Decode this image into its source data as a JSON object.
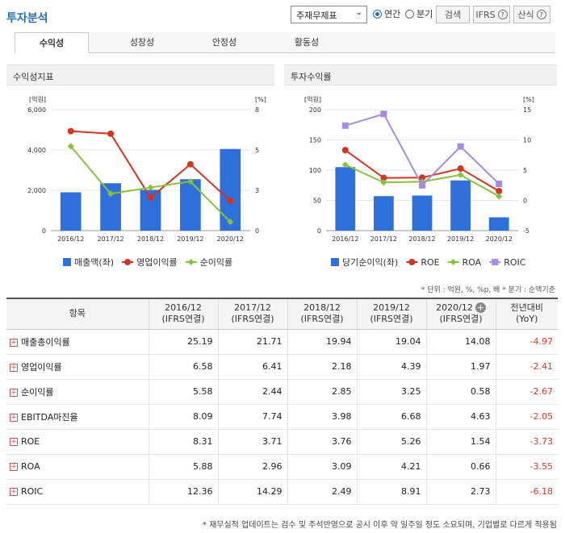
{
  "header": {
    "title": "투자분석",
    "select_value": "주재무제표",
    "radio_annual": "연간",
    "radio_quarter": "분기",
    "search_button": "검색",
    "ifrs_label": "IFRS",
    "formula_label": "산식"
  },
  "tabs": [
    {
      "label": "수익성",
      "active": true
    },
    {
      "label": "성장성",
      "active": false
    },
    {
      "label": "안정성",
      "active": false
    },
    {
      "label": "활동성",
      "active": false
    }
  ],
  "panels": {
    "left_title": "수익성지표",
    "right_title": "투자수익률"
  },
  "chart_data": [
    {
      "type": "bar",
      "title": "",
      "left_unit": "[억원]",
      "right_unit": "[%]",
      "categories": [
        "2016/12",
        "2017/12",
        "2018/12",
        "2019/12",
        "2020/12"
      ],
      "left_ticks": [
        "6,000",
        "4,000",
        "2,000",
        "0"
      ],
      "right_ticks": [
        "8",
        "5",
        "3",
        "0"
      ],
      "ylim": [
        0,
        6000
      ],
      "y2lim": [
        0,
        8
      ],
      "series": [
        {
          "name": "매출액(좌)",
          "kind": "bar",
          "axis": "left",
          "color": "#2e6fd9",
          "values": [
            1900,
            2350,
            2020,
            2550,
            4050
          ]
        },
        {
          "name": "영업이익률",
          "kind": "line",
          "axis": "right",
          "color": "#d4341f",
          "values": [
            6.58,
            6.41,
            2.18,
            4.39,
            1.97
          ]
        },
        {
          "name": "순이익률",
          "kind": "line",
          "axis": "right",
          "color": "#88c23a",
          "values": [
            5.58,
            2.44,
            2.85,
            3.25,
            0.58
          ]
        }
      ]
    },
    {
      "type": "bar",
      "title": "",
      "left_unit": "[억원]",
      "right_unit": "[%]",
      "categories": [
        "2016/12",
        "2017/12",
        "2018/12",
        "2019/12",
        "2020/12"
      ],
      "left_ticks": [
        "200",
        "150",
        "100",
        "50",
        "0"
      ],
      "right_ticks": [
        "15",
        "10",
        "5",
        "0",
        "-5"
      ],
      "ylim": [
        0,
        200
      ],
      "y2lim": [
        -5,
        15
      ],
      "series": [
        {
          "name": "당기순이익(좌)",
          "kind": "bar",
          "axis": "left",
          "color": "#2e6fd9",
          "values": [
            105,
            57,
            58,
            83,
            22
          ]
        },
        {
          "name": "ROE",
          "kind": "line",
          "axis": "right",
          "color": "#d4341f",
          "values": [
            8.31,
            3.71,
            3.76,
            5.26,
            1.54
          ]
        },
        {
          "name": "ROA",
          "kind": "line",
          "axis": "right",
          "color": "#88c23a",
          "values": [
            5.88,
            2.96,
            3.09,
            4.21,
            0.66
          ]
        },
        {
          "name": "ROIC",
          "kind": "line",
          "axis": "right",
          "color": "#a68be0",
          "values": [
            12.36,
            14.29,
            2.49,
            8.91,
            2.73
          ]
        }
      ]
    }
  ],
  "unit_note": "* 단위 : 억원, %, %p, 배   * 분기 : 순액기준",
  "table": {
    "header_item": "항목",
    "columns": [
      {
        "period": "2016/12",
        "basis": "(IFRS연결)"
      },
      {
        "period": "2017/12",
        "basis": "(IFRS연결)"
      },
      {
        "period": "2018/12",
        "basis": "(IFRS연결)"
      },
      {
        "period": "2019/12",
        "basis": "(IFRS연결)"
      },
      {
        "period": "2020/12",
        "basis": "(IFRS연결)"
      }
    ],
    "yoy_header": "전년대비",
    "yoy_sub": "(YoY)",
    "rows": [
      {
        "label": "매출총이익률",
        "values": [
          "25.19",
          "21.71",
          "19.94",
          "19.04",
          "14.08"
        ],
        "yoy": "-4.97"
      },
      {
        "label": "영업이익률",
        "values": [
          "6.58",
          "6.41",
          "2.18",
          "4.39",
          "1.97"
        ],
        "yoy": "-2.41"
      },
      {
        "label": "순이익률",
        "values": [
          "5.58",
          "2.44",
          "2.85",
          "3.25",
          "0.58"
        ],
        "yoy": "-2.67"
      },
      {
        "label": "EBITDA마진율",
        "values": [
          "8.09",
          "7.74",
          "3.98",
          "6.68",
          "4.63"
        ],
        "yoy": "-2.05"
      },
      {
        "label": "ROE",
        "values": [
          "8.31",
          "3.71",
          "3.76",
          "5.26",
          "1.54"
        ],
        "yoy": "-3.73"
      },
      {
        "label": "ROA",
        "values": [
          "5.88",
          "2.96",
          "3.09",
          "4.21",
          "0.66"
        ],
        "yoy": "-3.55"
      },
      {
        "label": "ROIC",
        "values": [
          "12.36",
          "14.29",
          "2.49",
          "8.91",
          "2.73"
        ],
        "yoy": "-6.18"
      }
    ]
  },
  "footnote": "* 재무실적 업데이트는 검수 및 주석반영으로 공시 이후 약 일주일 정도 소요되며, 기업별로 다르게 적용됨"
}
